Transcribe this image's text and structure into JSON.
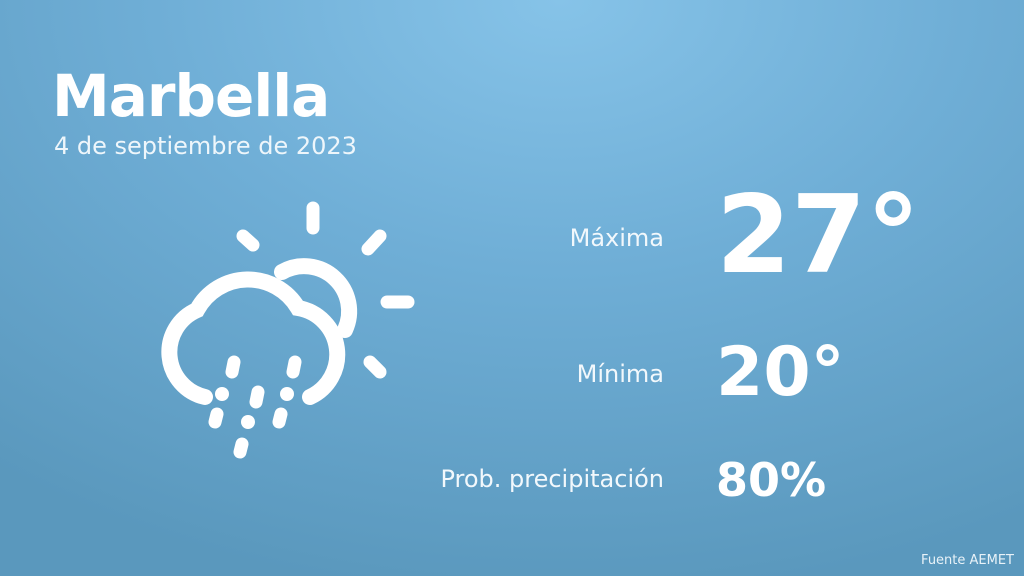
{
  "city": "Marbella",
  "date": "4 de septiembre de 2023",
  "icon": "sun-cloud-rain-icon",
  "max": {
    "label": "Máxima",
    "value": "27°"
  },
  "min": {
    "label": "Mínima",
    "value": "20°"
  },
  "precip": {
    "label": "Prob. precipitación",
    "value": "80%"
  },
  "source": "Fuente AEMET",
  "colors": {
    "background_top": "#86c3e8",
    "background_bottom": "#5a98bd",
    "text": "#ffffff"
  }
}
